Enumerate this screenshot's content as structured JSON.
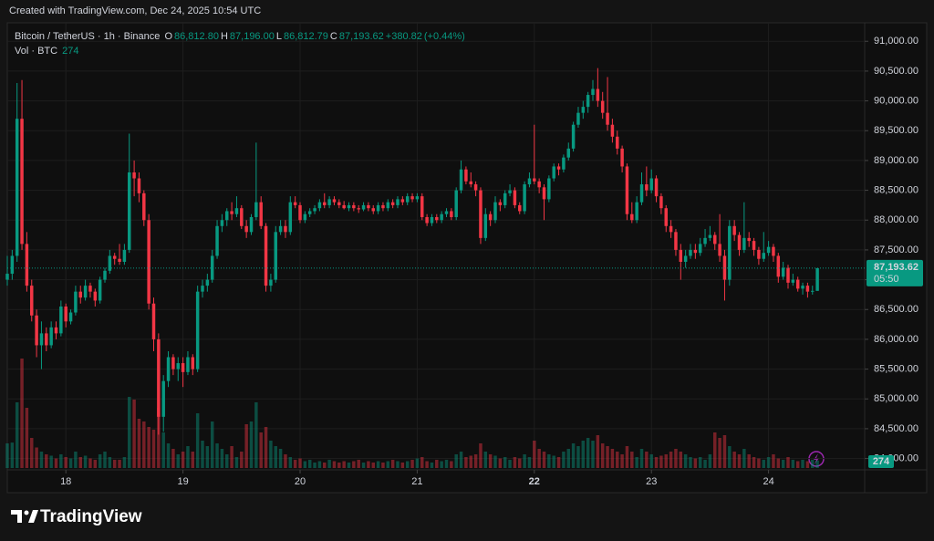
{
  "header": "Created with TradingView.com, Dec 24, 2025 10:54 UTC",
  "footer": {
    "brand": "TradingView"
  },
  "chart_data": {
    "type": "candlestick",
    "legend": {
      "symbol": "Bitcoin / TetherUS · 1h · Binance",
      "fields": [
        {
          "key": "O",
          "value": 86812.8,
          "label": "86,812.80"
        },
        {
          "key": "H",
          "value": 87196,
          "label": "87,196.00"
        },
        {
          "key": "L",
          "value": 86812.79,
          "label": "86,812.79"
        },
        {
          "key": "C",
          "value": 87193.62,
          "label": "87,193.62"
        }
      ],
      "change": {
        "value": 380.82,
        "label": "+380.82"
      },
      "change_pct": {
        "value": 0.44,
        "label": "(+0.44%)"
      },
      "volume_name": "Vol · BTC",
      "volume_value": 274
    },
    "up_color": "#089981",
    "down_color": "#f23645",
    "grid": true,
    "last_price": {
      "value": 87193.62,
      "label": "87,193.62"
    },
    "countdown": "05:50",
    "last_volume": 274,
    "xlim": [
      0,
      175.7
    ],
    "xticks": [
      {
        "value": 12,
        "label": "18"
      },
      {
        "value": 36,
        "label": "19"
      },
      {
        "value": 60,
        "label": "20"
      },
      {
        "value": 84,
        "label": "21"
      },
      {
        "value": 108,
        "label": "22"
      },
      {
        "value": 132,
        "label": "23"
      },
      {
        "value": 156,
        "label": "24"
      }
    ],
    "ylim": [
      83810,
      91310
    ],
    "yticks": [
      {
        "value": 84000,
        "label": "84,000.00"
      },
      {
        "value": 84500,
        "label": "84,500.00"
      },
      {
        "value": 85000,
        "label": "85,000.00"
      },
      {
        "value": 85500,
        "label": "85,500.00"
      },
      {
        "value": 86000,
        "label": "86,000.00"
      },
      {
        "value": 86500,
        "label": "86,500.00"
      },
      {
        "value": 87000,
        "label": "87,000.00"
      },
      {
        "value": 87500,
        "label": "87,500.00"
      },
      {
        "value": 88000,
        "label": "88,000.00"
      },
      {
        "value": 88500,
        "label": "88,500.00"
      },
      {
        "value": 89000,
        "label": "89,000.00"
      },
      {
        "value": 89500,
        "label": "89,500.00"
      },
      {
        "value": 90000,
        "label": "90,000.00"
      },
      {
        "value": 90500,
        "label": "90,500.00"
      },
      {
        "value": 91000,
        "label": "91,000.00"
      }
    ],
    "volume_lim": [
      0,
      4000
    ],
    "candles": [
      [
        87000,
        87400,
        86900,
        87100
      ],
      [
        87100,
        87500,
        87000,
        87400
      ],
      [
        87400,
        90300,
        87300,
        89700
      ],
      [
        89700,
        90350,
        87500,
        87600
      ],
      [
        87600,
        87800,
        86800,
        86900
      ],
      [
        86900,
        87000,
        86300,
        86400
      ],
      [
        86400,
        86500,
        85700,
        85900
      ],
      [
        85900,
        86300,
        85500,
        86100
      ],
      [
        86100,
        86200,
        85800,
        85900
      ],
      [
        85900,
        86300,
        85850,
        86200
      ],
      [
        86200,
        86300,
        86000,
        86100
      ],
      [
        86100,
        86650,
        86050,
        86550
      ],
      [
        86550,
        86600,
        86200,
        86300
      ],
      [
        86300,
        86500,
        86250,
        86450
      ],
      [
        86450,
        86900,
        86400,
        86800
      ],
      [
        86800,
        86900,
        86600,
        86700
      ],
      [
        86700,
        87000,
        86650,
        86900
      ],
      [
        86900,
        86950,
        86700,
        86800
      ],
      [
        86800,
        86850,
        86550,
        86650
      ],
      [
        86650,
        87050,
        86600,
        87000
      ],
      [
        87000,
        87200,
        86950,
        87150
      ],
      [
        87150,
        87500,
        87100,
        87400
      ],
      [
        87400,
        87450,
        87250,
        87350
      ],
      [
        87350,
        87600,
        87250,
        87300
      ],
      [
        87300,
        87600,
        87250,
        87500
      ],
      [
        87500,
        89450,
        87450,
        88800
      ],
      [
        88800,
        89000,
        88400,
        88700
      ],
      [
        88700,
        88800,
        88300,
        88450
      ],
      [
        88450,
        88500,
        87900,
        88000
      ],
      [
        88000,
        88100,
        86500,
        86600
      ],
      [
        86600,
        86700,
        85800,
        86000
      ],
      [
        86000,
        86100,
        84400,
        84700
      ],
      [
        84700,
        85400,
        84450,
        85300
      ],
      [
        85300,
        85800,
        85200,
        85700
      ],
      [
        85700,
        85750,
        85400,
        85500
      ],
      [
        85500,
        85700,
        85300,
        85600
      ],
      [
        85600,
        85700,
        85200,
        85450
      ],
      [
        85450,
        85800,
        85400,
        85700
      ],
      [
        85700,
        85750,
        85400,
        85500
      ],
      [
        85500,
        86900,
        85450,
        86800
      ],
      [
        86800,
        87000,
        86700,
        86900
      ],
      [
        86900,
        87100,
        86800,
        87000
      ],
      [
        87000,
        87500,
        86950,
        87400
      ],
      [
        87400,
        88000,
        87350,
        87900
      ],
      [
        87900,
        88100,
        87800,
        88000
      ],
      [
        88000,
        88200,
        87900,
        88150
      ],
      [
        88150,
        88300,
        88000,
        88100
      ],
      [
        88100,
        88400,
        88050,
        88200
      ],
      [
        88200,
        88250,
        87850,
        87900
      ],
      [
        87900,
        88000,
        87700,
        87800
      ],
      [
        87800,
        88100,
        87750,
        88050
      ],
      [
        88050,
        89300,
        88000,
        88300
      ],
      [
        88300,
        88400,
        87850,
        87900
      ],
      [
        87900,
        87950,
        86800,
        86900
      ],
      [
        86900,
        87100,
        86800,
        87000
      ],
      [
        87000,
        87900,
        86950,
        87800
      ],
      [
        87800,
        88000,
        87750,
        87900
      ],
      [
        87900,
        88000,
        87700,
        87800
      ],
      [
        87800,
        88400,
        87750,
        88300
      ],
      [
        88300,
        88400,
        88200,
        88250
      ],
      [
        88250,
        88300,
        87950,
        88000
      ],
      [
        88000,
        88150,
        87950,
        88100
      ],
      [
        88100,
        88200,
        88050,
        88150
      ],
      [
        88150,
        88250,
        88100,
        88200
      ],
      [
        88200,
        88350,
        88150,
        88300
      ],
      [
        88300,
        88450,
        88200,
        88250
      ],
      [
        88250,
        88400,
        88200,
        88350
      ],
      [
        88350,
        88400,
        88250,
        88300
      ],
      [
        88300,
        88350,
        88200,
        88250
      ],
      [
        88250,
        88320,
        88180,
        88200
      ],
      [
        88200,
        88300,
        88150,
        88250
      ],
      [
        88250,
        88300,
        88150,
        88200
      ],
      [
        88200,
        88250,
        88120,
        88180
      ],
      [
        88180,
        88300,
        88150,
        88250
      ],
      [
        88250,
        88300,
        88150,
        88200
      ],
      [
        88200,
        88250,
        88100,
        88150
      ],
      [
        88150,
        88300,
        88100,
        88250
      ],
      [
        88250,
        88300,
        88150,
        88200
      ],
      [
        88200,
        88350,
        88150,
        88300
      ],
      [
        88300,
        88350,
        88200,
        88250
      ],
      [
        88250,
        88400,
        88200,
        88350
      ],
      [
        88350,
        88400,
        88250,
        88300
      ],
      [
        88300,
        88450,
        88250,
        88400
      ],
      [
        88400,
        88450,
        88300,
        88350
      ],
      [
        88350,
        88450,
        88300,
        88400
      ],
      [
        88400,
        88450,
        88000,
        88050
      ],
      [
        88050,
        88100,
        87900,
        87950
      ],
      [
        87950,
        88100,
        87900,
        88050
      ],
      [
        88050,
        88100,
        87950,
        88000
      ],
      [
        88000,
        88150,
        87950,
        88100
      ],
      [
        88100,
        88200,
        88050,
        88150
      ],
      [
        88150,
        88200,
        88000,
        88050
      ],
      [
        88050,
        88550,
        88000,
        88500
      ],
      [
        88500,
        89000,
        88450,
        88850
      ],
      [
        88850,
        88900,
        88600,
        88650
      ],
      [
        88650,
        88800,
        88550,
        88600
      ],
      [
        88600,
        88650,
        88400,
        88500
      ],
      [
        88500,
        88550,
        87600,
        87700
      ],
      [
        87700,
        88200,
        87650,
        88100
      ],
      [
        88100,
        88150,
        87900,
        88000
      ],
      [
        88000,
        88400,
        87950,
        88300
      ],
      [
        88300,
        88350,
        88150,
        88250
      ],
      [
        88250,
        88500,
        88200,
        88450
      ],
      [
        88450,
        88600,
        88400,
        88500
      ],
      [
        88500,
        88550,
        88200,
        88250
      ],
      [
        88250,
        88300,
        88100,
        88150
      ],
      [
        88150,
        88650,
        88100,
        88600
      ],
      [
        88600,
        88800,
        88550,
        88700
      ],
      [
        88700,
        89600,
        88600,
        88650
      ],
      [
        88650,
        88700,
        88450,
        88550
      ],
      [
        88550,
        88600,
        88000,
        88350
      ],
      [
        88350,
        88750,
        88300,
        88700
      ],
      [
        88700,
        88950,
        88650,
        88900
      ],
      [
        88900,
        88950,
        88750,
        88850
      ],
      [
        88850,
        89100,
        88800,
        89050
      ],
      [
        89050,
        89300,
        89000,
        89200
      ],
      [
        89200,
        89650,
        89150,
        89600
      ],
      [
        89600,
        89900,
        89550,
        89800
      ],
      [
        89800,
        90000,
        89700,
        89900
      ],
      [
        89900,
        90150,
        89800,
        90100
      ],
      [
        90100,
        90350,
        90000,
        90200
      ],
      [
        90200,
        90550,
        89900,
        90000
      ],
      [
        90000,
        90150,
        89700,
        89800
      ],
      [
        89800,
        90400,
        89500,
        89600
      ],
      [
        89600,
        89700,
        89300,
        89400
      ],
      [
        89400,
        89500,
        89100,
        89200
      ],
      [
        89200,
        89250,
        88800,
        88900
      ],
      [
        88900,
        88950,
        88000,
        88100
      ],
      [
        88100,
        88300,
        87950,
        88000
      ],
      [
        88000,
        88400,
        87950,
        88300
      ],
      [
        88300,
        88800,
        88250,
        88600
      ],
      [
        88600,
        88900,
        88400,
        88500
      ],
      [
        88500,
        88850,
        88450,
        88700
      ],
      [
        88700,
        88750,
        88300,
        88400
      ],
      [
        88400,
        88450,
        88100,
        88200
      ],
      [
        88200,
        88250,
        87800,
        87900
      ],
      [
        87900,
        88000,
        87700,
        87800
      ],
      [
        87800,
        87850,
        87400,
        87500
      ],
      [
        87500,
        87600,
        87000,
        87300
      ],
      [
        87300,
        87500,
        87200,
        87400
      ],
      [
        87400,
        87600,
        87350,
        87500
      ],
      [
        87500,
        87600,
        87350,
        87450
      ],
      [
        87450,
        87700,
        87400,
        87600
      ],
      [
        87600,
        87850,
        87550,
        87700
      ],
      [
        87700,
        87900,
        87650,
        87750
      ],
      [
        87750,
        87800,
        87500,
        87600
      ],
      [
        87600,
        88100,
        87300,
        87400
      ],
      [
        87400,
        87500,
        86650,
        87000
      ],
      [
        87000,
        88000,
        86900,
        87900
      ],
      [
        87900,
        88000,
        87650,
        87750
      ],
      [
        87750,
        87800,
        87400,
        87500
      ],
      [
        87500,
        88300,
        87450,
        87700
      ],
      [
        87700,
        87800,
        87550,
        87650
      ],
      [
        87650,
        87700,
        87400,
        87500
      ],
      [
        87500,
        87550,
        87250,
        87350
      ],
      [
        87350,
        87800,
        87300,
        87450
      ],
      [
        87450,
        87650,
        87400,
        87550
      ],
      [
        87550,
        87600,
        87300,
        87400
      ],
      [
        87400,
        87450,
        86950,
        87050
      ],
      [
        87050,
        87300,
        87000,
        87200
      ],
      [
        87200,
        87250,
        86850,
        86950
      ],
      [
        86950,
        87100,
        86900,
        87000
      ],
      [
        87000,
        87050,
        86800,
        86850
      ],
      [
        86850,
        86950,
        86750,
        86900
      ],
      [
        86900,
        86950,
        86700,
        86800
      ],
      [
        86800,
        86900,
        86750,
        86812.8
      ],
      [
        86812.8,
        87196,
        86812.79,
        87193.62
      ]
    ],
    "volume": [
      900,
      930,
      2400,
      4000,
      2200,
      1100,
      750,
      600,
      500,
      450,
      350,
      500,
      400,
      350,
      600,
      400,
      450,
      350,
      300,
      500,
      600,
      400,
      300,
      300,
      400,
      2600,
      2500,
      1800,
      1700,
      1500,
      1400,
      2200,
      1300,
      900,
      700,
      500,
      600,
      800,
      600,
      2000,
      1000,
      800,
      1700,
      900,
      700,
      500,
      800,
      400,
      600,
      1600,
      1700,
      2400,
      1300,
      1500,
      1000,
      800,
      700,
      500,
      400,
      300,
      350,
      250,
      300,
      200,
      250,
      200,
      300,
      250,
      200,
      250,
      200,
      250,
      300,
      200,
      250,
      200,
      250,
      200,
      250,
      300,
      250,
      200,
      250,
      300,
      350,
      400,
      250,
      200,
      300,
      250,
      300,
      250,
      500,
      600,
      400,
      450,
      500,
      900,
      600,
      500,
      450,
      350,
      400,
      300,
      400,
      350,
      500,
      400,
      1000,
      700,
      600,
      500,
      450,
      400,
      600,
      700,
      900,
      800,
      1000,
      1100,
      1000,
      1200,
      900,
      800,
      700,
      600,
      500,
      800,
      600,
      400,
      700,
      600,
      500,
      400,
      450,
      500,
      600,
      700,
      600,
      500,
      400,
      350,
      400,
      300,
      500,
      1300,
      1100,
      1200,
      800,
      600,
      500,
      700,
      500,
      400,
      350,
      300,
      400,
      500,
      350,
      300,
      400,
      300,
      250,
      300,
      250,
      300,
      274
    ]
  }
}
